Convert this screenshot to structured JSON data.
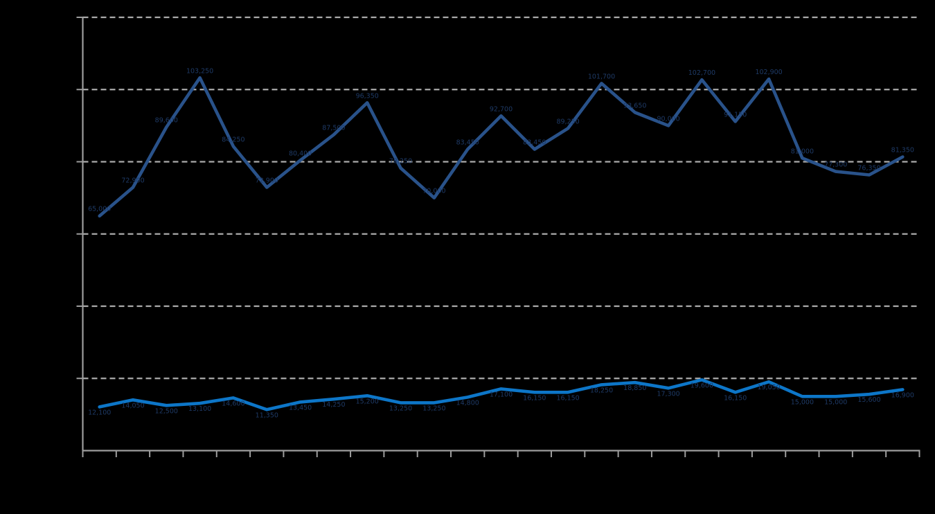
{
  "page": {
    "background": "#000000"
  },
  "chart_data": {
    "type": "line",
    "title": "",
    "legend": {
      "visible": false
    },
    "grid": {
      "horizontal": true,
      "style": "dashed",
      "color": "#ababab"
    },
    "axis_color": "#9e9e9e",
    "data_label_color": "#1e3a66",
    "axes": {
      "y": {
        "min": 0,
        "max": 120000,
        "gridline_interval": 20000,
        "tick_labels_visible": false
      },
      "x": {
        "tick_count": 26,
        "point_count": 25,
        "tick_labels_visible": false
      }
    },
    "series": [
      {
        "name": "dark-blue-line",
        "color": "#29528a",
        "values": [
          65000,
          72900,
          89600,
          103250,
          84250,
          72900,
          80400,
          87500,
          96350,
          78250,
          70000,
          83450,
          92700,
          83450,
          89250,
          101700,
          93650,
          90000,
          102700,
          91150,
          102900,
          81000,
          77300,
          76350,
          81350
        ],
        "labels": [
          "65,000",
          "72,900",
          "89,600",
          "103,250",
          "84,250",
          "72,900",
          "80,400",
          "87,500",
          "96,350",
          "78,250",
          "70,000",
          "83,450",
          "92,700",
          "83,450",
          "89,250",
          "101,700",
          "93,650",
          "90,000",
          "102,700",
          "91,150",
          "102,900",
          "81,000",
          "77,300",
          "76,350",
          "81,350"
        ],
        "label_offset_y": -7
      },
      {
        "name": "light-blue-line",
        "color": "#0d76c8",
        "values": [
          12100,
          14050,
          12500,
          13100,
          14600,
          11350,
          13450,
          14250,
          15200,
          13250,
          13250,
          14800,
          17100,
          16150,
          16150,
          18250,
          18850,
          17300,
          19600,
          16150,
          19050,
          15000,
          15000,
          15600,
          16900
        ],
        "labels": [
          "12,100",
          "14,050",
          "12,500",
          "13,100",
          "14,600",
          "11,350",
          "13,450",
          "14,250",
          "15,200",
          "13,250",
          "13,250",
          "14,800",
          "17,100",
          "16,150",
          "16,150",
          "18,250",
          "18,850",
          "17,300",
          "19,600",
          "16,150",
          "19,050",
          "15,000",
          "15,000",
          "15,600",
          "16,900"
        ],
        "label_offset_y": 11
      }
    ]
  }
}
